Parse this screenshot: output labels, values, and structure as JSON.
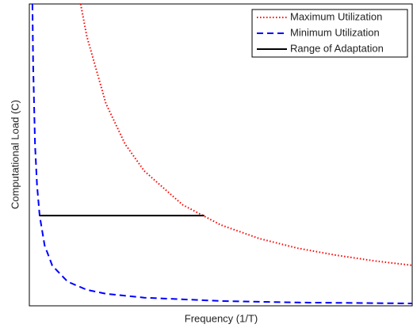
{
  "chart_data": {
    "type": "line",
    "xlabel": "Frequency (1/T)",
    "ylabel": "Computational Load (C)",
    "xlim": [
      0,
      1
    ],
    "ylim": [
      0,
      1
    ],
    "legend": "upper right",
    "series": [
      {
        "name": "Maximum Utilization",
        "color": "#ff0000",
        "style": "dotted",
        "x": [
          0.134,
          0.15,
          0.2,
          0.25,
          0.3,
          0.4,
          0.5,
          0.6,
          0.7,
          0.8,
          0.9,
          1.0
        ],
        "values": [
          1.0,
          0.893,
          0.67,
          0.536,
          0.447,
          0.335,
          0.268,
          0.223,
          0.191,
          0.168,
          0.149,
          0.134
        ]
      },
      {
        "name": "Minimum Utilization",
        "color": "#0000ff",
        "style": "dashed",
        "x": [
          0.008,
          0.01,
          0.015,
          0.02,
          0.027,
          0.04,
          0.06,
          0.1,
          0.15,
          0.2,
          0.3,
          0.5,
          0.7,
          1.0
        ],
        "values": [
          1.0,
          0.8,
          0.533,
          0.4,
          0.299,
          0.2,
          0.133,
          0.08,
          0.053,
          0.04,
          0.027,
          0.016,
          0.011,
          0.008
        ]
      },
      {
        "name": "Range of Adaptation",
        "color": "#000000",
        "style": "solid",
        "x": [
          0.027,
          0.457
        ],
        "values": [
          0.299,
          0.299
        ]
      }
    ]
  }
}
